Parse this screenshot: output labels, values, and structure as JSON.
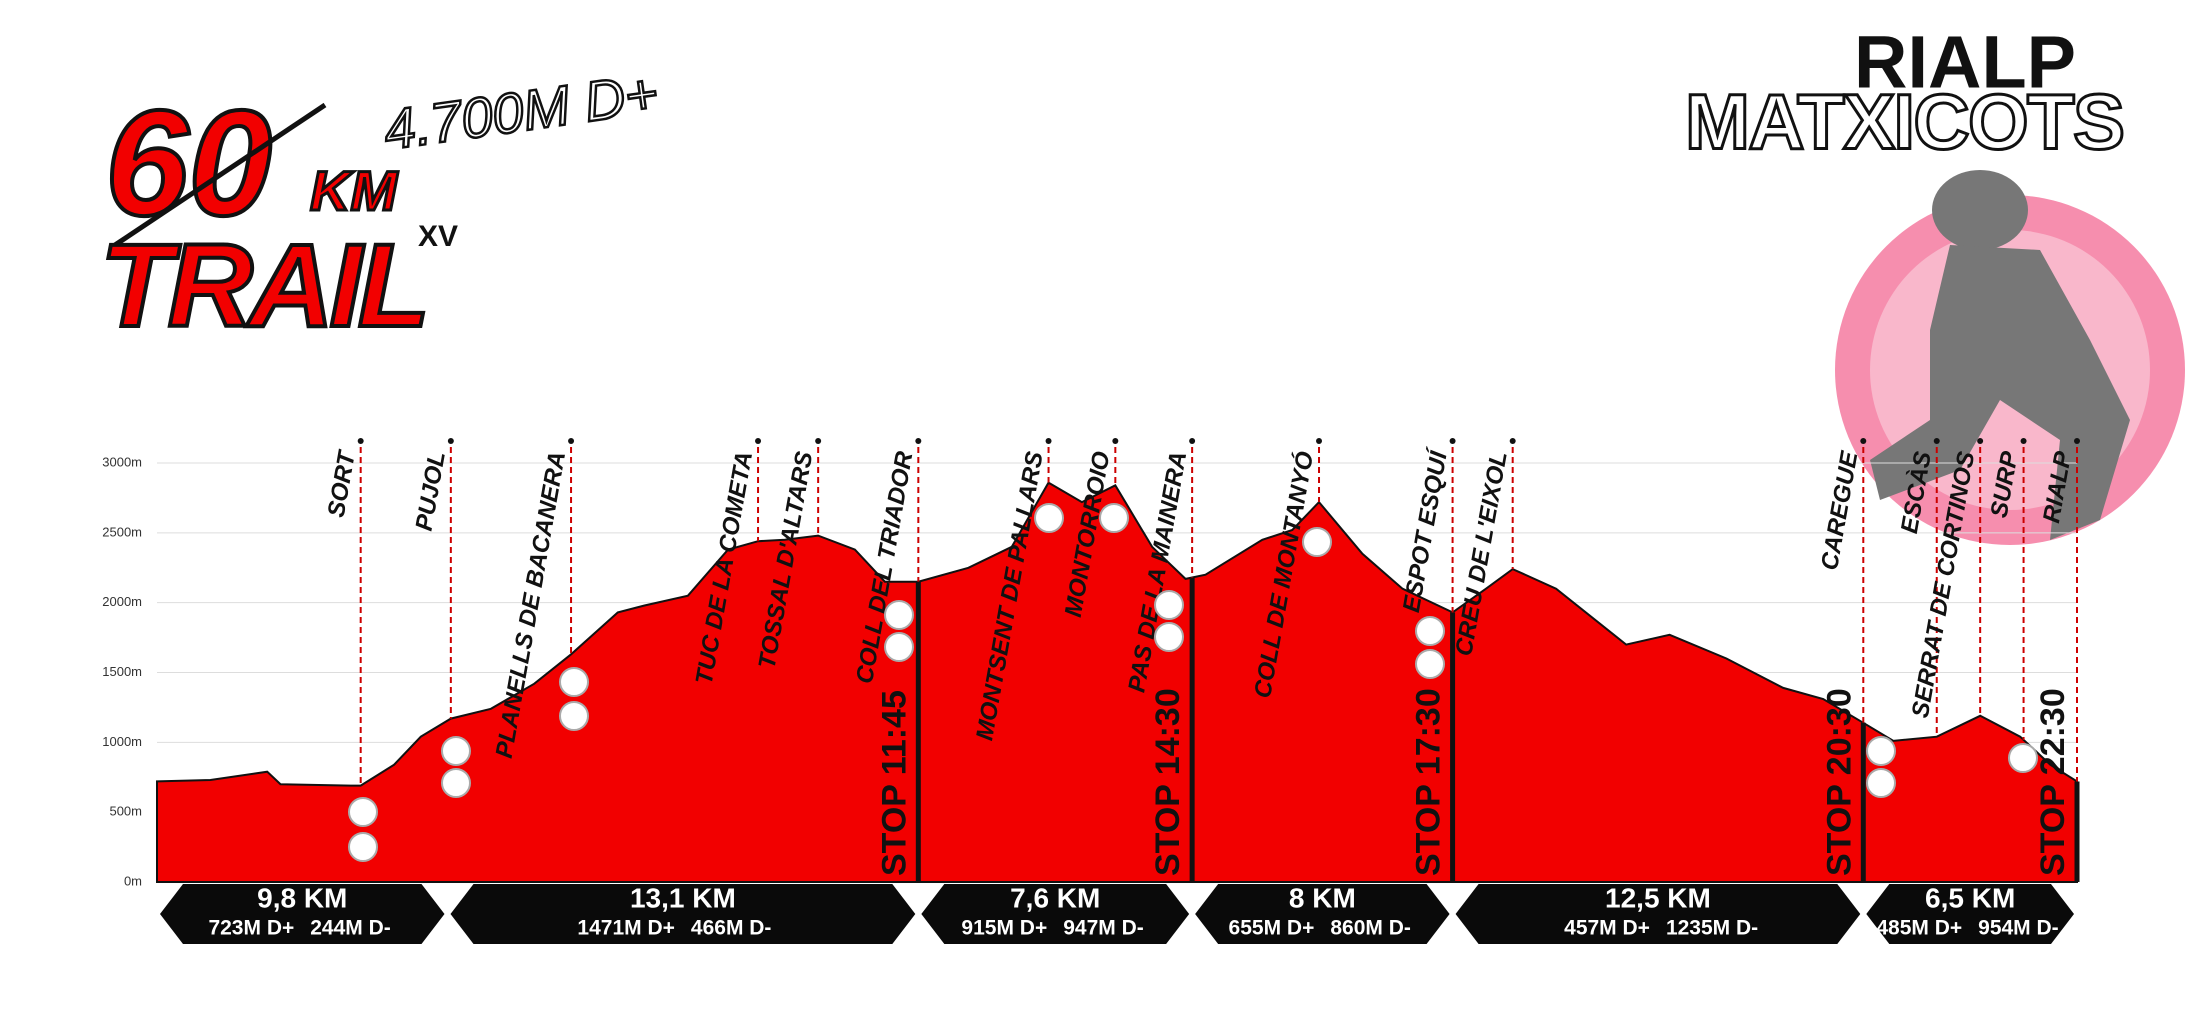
{
  "chart_data": {
    "type": "area",
    "logo": {
      "number": "60",
      "unit": "KM",
      "word": "TRAIL",
      "edition": "XV",
      "gain": "4.700M D+"
    },
    "brand": {
      "top": "RIALP",
      "bottom": "MATXICOTS"
    },
    "color": "#f20000",
    "xlim": [
      0,
      57.5
    ],
    "ylim": [
      0,
      3000
    ],
    "yticks": [
      {
        "value": 0,
        "label": "0m"
      },
      {
        "value": 500,
        "label": "500m"
      },
      {
        "value": 1000,
        "label": "1000m"
      },
      {
        "value": 1500,
        "label": "1500m"
      },
      {
        "value": 2000,
        "label": "2000m"
      },
      {
        "value": 2500,
        "label": "2500m"
      },
      {
        "value": 3000,
        "label": "3000m"
      }
    ],
    "grid": true,
    "x": [
      0,
      1.6,
      3.3,
      3.7,
      5.8,
      6.1,
      7.1,
      7.9,
      8.8,
      10.0,
      11.3,
      12.4,
      13.8,
      14.6,
      15.9,
      17.1,
      18.0,
      18.8,
      19.8,
      20.9,
      21.8,
      22.8,
      24.3,
      25.6,
      26.7,
      27.7,
      28.7,
      29.8,
      30.8,
      31.4,
      33.1,
      34.0,
      34.8,
      36.1,
      37.3,
      38.8,
      39.8,
      40.6,
      41.9,
      44.0,
      45.3,
      47.0,
      48.7,
      49.9,
      51.1,
      52.0,
      53.3,
      54.6,
      55.8,
      56.7,
      57.5
    ],
    "values": [
      720,
      730,
      790,
      700,
      690,
      690,
      840,
      1040,
      1170,
      1240,
      1420,
      1630,
      1930,
      1980,
      2050,
      2380,
      2440,
      2450,
      2480,
      2380,
      2150,
      2150,
      2250,
      2400,
      2860,
      2720,
      2840,
      2400,
      2170,
      2200,
      2450,
      2520,
      2720,
      2350,
      2100,
      1930,
      2100,
      2240,
      2100,
      1700,
      1770,
      1600,
      1390,
      1310,
      1140,
      1010,
      1040,
      1190,
      1040,
      840,
      720
    ],
    "waypoints": [
      {
        "name": "SORT",
        "x": 6.1
      },
      {
        "name": "PUJOL",
        "x": 8.8
      },
      {
        "name": "PLANELLS DE BACANERA",
        "x": 12.4
      },
      {
        "name": "TUC DE LA COMETA",
        "x": 18.0
      },
      {
        "name": "TOSSAL D'ALTARS",
        "x": 19.8
      },
      {
        "name": "COLL DEL TRIADOR",
        "x": 22.8
      },
      {
        "name": "MONTSENT DE PALLARS",
        "x": 26.7
      },
      {
        "name": "MONTORROIO",
        "x": 28.7
      },
      {
        "name": "PAS DE LA MAINERA",
        "x": 31.0
      },
      {
        "name": "COLL DE MONTANYÓ",
        "x": 34.8
      },
      {
        "name": "ESPOT ESQUÍ",
        "x": 38.8
      },
      {
        "name": "CREU DE L'EIXOL",
        "x": 40.6
      },
      {
        "name": "CAREGUE",
        "x": 51.1
      },
      {
        "name": "ESCÀS",
        "x": 53.3
      },
      {
        "name": "SERRAT DE CORTINOS",
        "x": 54.6
      },
      {
        "name": "SURP",
        "x": 55.9
      },
      {
        "name": "RIALP",
        "x": 57.5
      }
    ],
    "stops": [
      {
        "label": "STOP 11:45",
        "x": 22.8
      },
      {
        "label": "STOP 14:30",
        "x": 31.0
      },
      {
        "label": "STOP 17:30",
        "x": 38.8
      },
      {
        "label": "STOP 20:30",
        "x": 51.1
      },
      {
        "label": "STOP 22:30",
        "x": 57.5
      }
    ],
    "segments": [
      {
        "distance": "9,8 KM",
        "gain": "723M D+",
        "loss": "244M D-",
        "end": 8.7
      },
      {
        "distance": "13,1 KM",
        "gain": "1471M D+",
        "loss": "466M D-",
        "end": 22.8
      },
      {
        "distance": "7,6 KM",
        "gain": "915M D+",
        "loss": "947M D-",
        "end": 31.0
      },
      {
        "distance": "8 KM",
        "gain": "655M D+",
        "loss": "860M D-",
        "end": 38.8
      },
      {
        "distance": "12,5 KM",
        "gain": "457M D+",
        "loss": "1235M D-",
        "end": 51.1
      },
      {
        "distance": "6,5 KM",
        "gain": "485M D+",
        "loss": "954M D-",
        "end": 57.5
      }
    ]
  }
}
